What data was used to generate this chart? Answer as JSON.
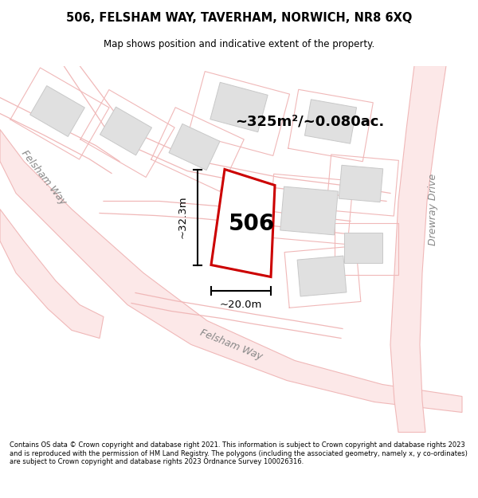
{
  "title_line1": "506, FELSHAM WAY, TAVERHAM, NORWICH, NR8 6XQ",
  "title_line2": "Map shows position and indicative extent of the property.",
  "area_text": "~325m²/~0.080ac.",
  "plot_number": "506",
  "dim_width": "~20.0m",
  "dim_height": "~32.3m",
  "street_label_bottom": "Felsham Way",
  "street_label_left": "Felsham Way",
  "street_label_right": "Drewray Drive",
  "footer_text": "Contains OS data © Crown copyright and database right 2021. This information is subject to Crown copyright and database rights 2023 and is reproduced with the permission of HM Land Registry. The polygons (including the associated geometry, namely x, y co-ordinates) are subject to Crown copyright and database rights 2023 Ordnance Survey 100026316.",
  "map_bg": "#ffffff",
  "road_line_color": "#f0b8b8",
  "building_fill": "#e0e0e0",
  "building_edge": "#c8c8c8",
  "plot_fill": "#ffffff",
  "plot_edge": "#cc0000",
  "dim_color": "#000000",
  "area_color": "#000000",
  "text_color": "#888888"
}
